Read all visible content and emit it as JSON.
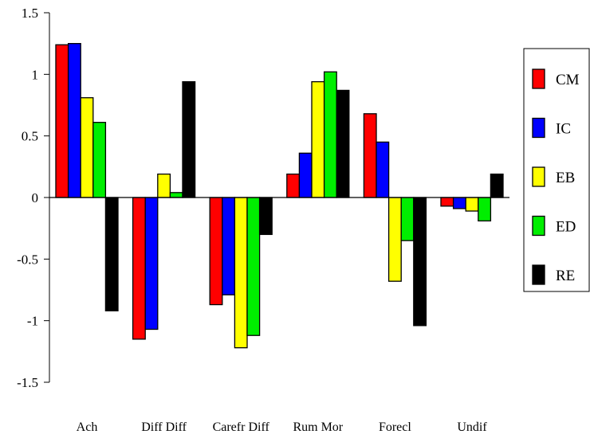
{
  "chart_data": {
    "type": "bar",
    "title": "",
    "xlabel": "",
    "ylabel": "",
    "ylim": [
      -1.5,
      1.5
    ],
    "yticks": [
      "-1.5",
      "-1",
      "-0.5",
      "0",
      "0.5",
      "1",
      "1.5"
    ],
    "grid": false,
    "legend_position": "right",
    "categories": [
      "Ach",
      "Diff Diff",
      "Carefr Diff",
      "Rum Mor",
      "Forecl",
      "Undif"
    ],
    "series": [
      {
        "name": "CM",
        "color": "#ff0000",
        "values": [
          1.24,
          -1.15,
          -0.87,
          0.19,
          0.68,
          -0.07
        ]
      },
      {
        "name": "IC",
        "color": "#0000ff",
        "values": [
          1.25,
          -1.07,
          -0.79,
          0.36,
          0.45,
          -0.09
        ]
      },
      {
        "name": "EB",
        "color": "#ffff00",
        "values": [
          0.81,
          0.19,
          -1.22,
          0.94,
          -0.68,
          -0.11
        ]
      },
      {
        "name": "ED",
        "color": "#00ee00",
        "values": [
          0.61,
          0.04,
          -1.12,
          1.02,
          -0.35,
          -0.19
        ]
      },
      {
        "name": "RE",
        "color": "#000000",
        "values": [
          -0.92,
          0.94,
          -0.3,
          0.87,
          -1.04,
          0.19
        ]
      }
    ]
  }
}
